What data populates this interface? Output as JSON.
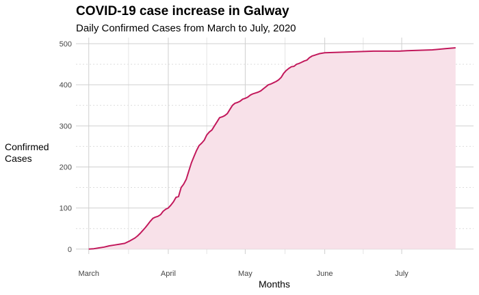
{
  "chart_data": {
    "type": "area",
    "title": "COVID-19 case increase in Galway",
    "subtitle": "Daily Confirmed Cases from March to July, 2020",
    "xlabel": "Months",
    "ylabel_lines": [
      "Confirmed",
      "Cases"
    ],
    "x_ticks": [
      {
        "label": "March",
        "date": "2020-03-01"
      },
      {
        "label": "April",
        "date": "2020-04-01"
      },
      {
        "label": "May",
        "date": "2020-05-01"
      },
      {
        "label": "June",
        "date": "2020-06-01"
      },
      {
        "label": "July",
        "date": "2020-07-01"
      }
    ],
    "y_ticks": [
      0,
      100,
      200,
      300,
      400,
      500
    ],
    "ylim": [
      -12,
      515
    ],
    "xlim": [
      "2020-02-25",
      "2020-07-29"
    ],
    "grid": true,
    "colors": {
      "line": "#c2185b",
      "fill": "#f8e1e9"
    },
    "series": [
      {
        "x": [
          "2020-03-01",
          "2020-03-03",
          "2020-03-05",
          "2020-03-07",
          "2020-03-09",
          "2020-03-11",
          "2020-03-13",
          "2020-03-15",
          "2020-03-17",
          "2020-03-19",
          "2020-03-20",
          "2020-03-21",
          "2020-03-22",
          "2020-03-23",
          "2020-03-24",
          "2020-03-25",
          "2020-03-26",
          "2020-03-27",
          "2020-03-28",
          "2020-03-29",
          "2020-03-30",
          "2020-03-31",
          "2020-04-01",
          "2020-04-02",
          "2020-04-03",
          "2020-04-04",
          "2020-04-05",
          "2020-04-06",
          "2020-04-07",
          "2020-04-08",
          "2020-04-09",
          "2020-04-10",
          "2020-04-11",
          "2020-04-12",
          "2020-04-13",
          "2020-04-14",
          "2020-04-15",
          "2020-04-16",
          "2020-04-17",
          "2020-04-18",
          "2020-04-19",
          "2020-04-20",
          "2020-04-21",
          "2020-04-22",
          "2020-04-23",
          "2020-04-24",
          "2020-04-25",
          "2020-04-26",
          "2020-04-27",
          "2020-04-28",
          "2020-04-29",
          "2020-04-30",
          "2020-05-01",
          "2020-05-02",
          "2020-05-03",
          "2020-05-04",
          "2020-05-05",
          "2020-05-06",
          "2020-05-07",
          "2020-05-08",
          "2020-05-09",
          "2020-05-10",
          "2020-05-11",
          "2020-05-12",
          "2020-05-13",
          "2020-05-14",
          "2020-05-15",
          "2020-05-16",
          "2020-05-17",
          "2020-05-18",
          "2020-05-19",
          "2020-05-20",
          "2020-05-21",
          "2020-05-22",
          "2020-05-23",
          "2020-05-24",
          "2020-05-25",
          "2020-05-26",
          "2020-05-27",
          "2020-05-28",
          "2020-05-29",
          "2020-05-30",
          "2020-05-31",
          "2020-06-01",
          "2020-06-05",
          "2020-06-10",
          "2020-06-15",
          "2020-06-20",
          "2020-06-25",
          "2020-06-30",
          "2020-07-03",
          "2020-07-08",
          "2020-07-13",
          "2020-07-18",
          "2020-07-22"
        ],
        "y": [
          0,
          1,
          3,
          5,
          8,
          10,
          12,
          14,
          20,
          27,
          32,
          38,
          45,
          52,
          60,
          68,
          75,
          78,
          80,
          84,
          92,
          97,
          100,
          107,
          115,
          126,
          128,
          150,
          158,
          170,
          190,
          210,
          225,
          240,
          252,
          258,
          265,
          278,
          285,
          290,
          300,
          310,
          320,
          322,
          325,
          330,
          340,
          350,
          355,
          357,
          360,
          365,
          367,
          370,
          375,
          378,
          380,
          382,
          385,
          390,
          395,
          400,
          402,
          405,
          408,
          412,
          418,
          428,
          435,
          440,
          444,
          445,
          450,
          452,
          455,
          458,
          460,
          466,
          470,
          472,
          474,
          476,
          477,
          478,
          479,
          480,
          481,
          482,
          482,
          482,
          483,
          484,
          485,
          488,
          490
        ]
      }
    ]
  }
}
